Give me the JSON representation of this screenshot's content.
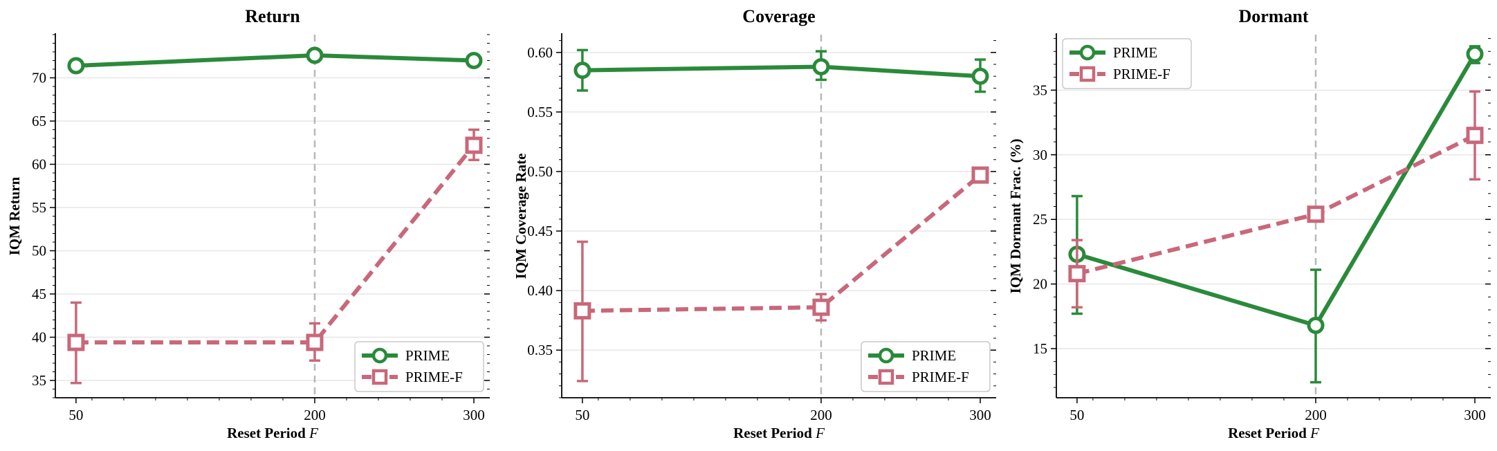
{
  "chart_data": [
    {
      "type": "line",
      "title": "Return",
      "xlabel": "Reset Period",
      "xlabel_var": "F",
      "ylabel": "IQM Return",
      "x": [
        50,
        200,
        300
      ],
      "xticks": [
        "50",
        "200",
        "300"
      ],
      "xlim": [
        37,
        310
      ],
      "ylim": [
        33,
        75
      ],
      "yticks": [
        35,
        40,
        45,
        50,
        55,
        60,
        65,
        70
      ],
      "ytick_labels": [
        "35",
        "40",
        "45",
        "50",
        "55",
        "60",
        "65",
        "70"
      ],
      "grid": true,
      "vline_x": 200,
      "legend": "bottom-right",
      "series": [
        {
          "name": "PRIME",
          "color": "#2a8a3a",
          "marker": "circle",
          "dash": false,
          "values": [
            71.4,
            72.6,
            72.0
          ],
          "errors": [
            [
              71.4,
              71.4
            ],
            [
              72.6,
              72.6
            ],
            [
              72.0,
              72.0
            ]
          ]
        },
        {
          "name": "PRIME-F",
          "color": "#c8687a",
          "marker": "square",
          "dash": true,
          "values": [
            39.4,
            39.4,
            62.2
          ],
          "errors": [
            [
              34.7,
              44.0
            ],
            [
              37.3,
              41.6
            ],
            [
              60.5,
              64.0
            ]
          ]
        }
      ]
    },
    {
      "type": "line",
      "title": "Coverage",
      "xlabel": "Reset Period",
      "xlabel_var": "F",
      "ylabel": "IQM Coverage Rate",
      "x": [
        50,
        200,
        300
      ],
      "xticks": [
        "50",
        "200",
        "300"
      ],
      "xlim": [
        37,
        310
      ],
      "ylim": [
        0.31,
        0.615
      ],
      "yticks": [
        0.35,
        0.4,
        0.45,
        0.5,
        0.55,
        0.6
      ],
      "ytick_labels": [
        "0.35",
        "0.40",
        "0.45",
        "0.50",
        "0.55",
        "0.60"
      ],
      "grid": true,
      "vline_x": 200,
      "legend": "bottom-right",
      "series": [
        {
          "name": "PRIME",
          "color": "#2a8a3a",
          "marker": "circle",
          "dash": false,
          "values": [
            0.585,
            0.588,
            0.58
          ],
          "errors": [
            [
              0.568,
              0.602
            ],
            [
              0.577,
              0.601
            ],
            [
              0.567,
              0.594
            ]
          ]
        },
        {
          "name": "PRIME-F",
          "color": "#c8687a",
          "marker": "square",
          "dash": true,
          "values": [
            0.383,
            0.386,
            0.497
          ],
          "errors": [
            [
              0.324,
              0.441
            ],
            [
              0.375,
              0.397
            ],
            [
              0.493,
              0.501
            ]
          ]
        }
      ]
    },
    {
      "type": "line",
      "title": "Dormant",
      "xlabel": "Reset Period",
      "xlabel_var": "F",
      "ylabel": "IQM Dormant Frac. (%)",
      "x": [
        50,
        200,
        300
      ],
      "xticks": [
        "50",
        "200",
        "300"
      ],
      "xlim": [
        37,
        310
      ],
      "ylim": [
        11.2,
        39.3
      ],
      "yticks": [
        15,
        20,
        25,
        30,
        35
      ],
      "ytick_labels": [
        "15",
        "20",
        "25",
        "30",
        "35"
      ],
      "grid": true,
      "vline_x": 200,
      "legend": "top-left",
      "series": [
        {
          "name": "PRIME",
          "color": "#2a8a3a",
          "marker": "circle",
          "dash": false,
          "values": [
            22.3,
            16.8,
            37.8
          ],
          "errors": [
            [
              17.7,
              26.8
            ],
            [
              12.4,
              21.1
            ],
            [
              37.1,
              38.4
            ]
          ]
        },
        {
          "name": "PRIME-F",
          "color": "#c8687a",
          "marker": "square",
          "dash": true,
          "values": [
            20.8,
            25.4,
            31.5
          ],
          "errors": [
            [
              18.2,
              23.4
            ],
            [
              24.9,
              25.9
            ],
            [
              28.1,
              34.9
            ]
          ]
        }
      ]
    }
  ]
}
